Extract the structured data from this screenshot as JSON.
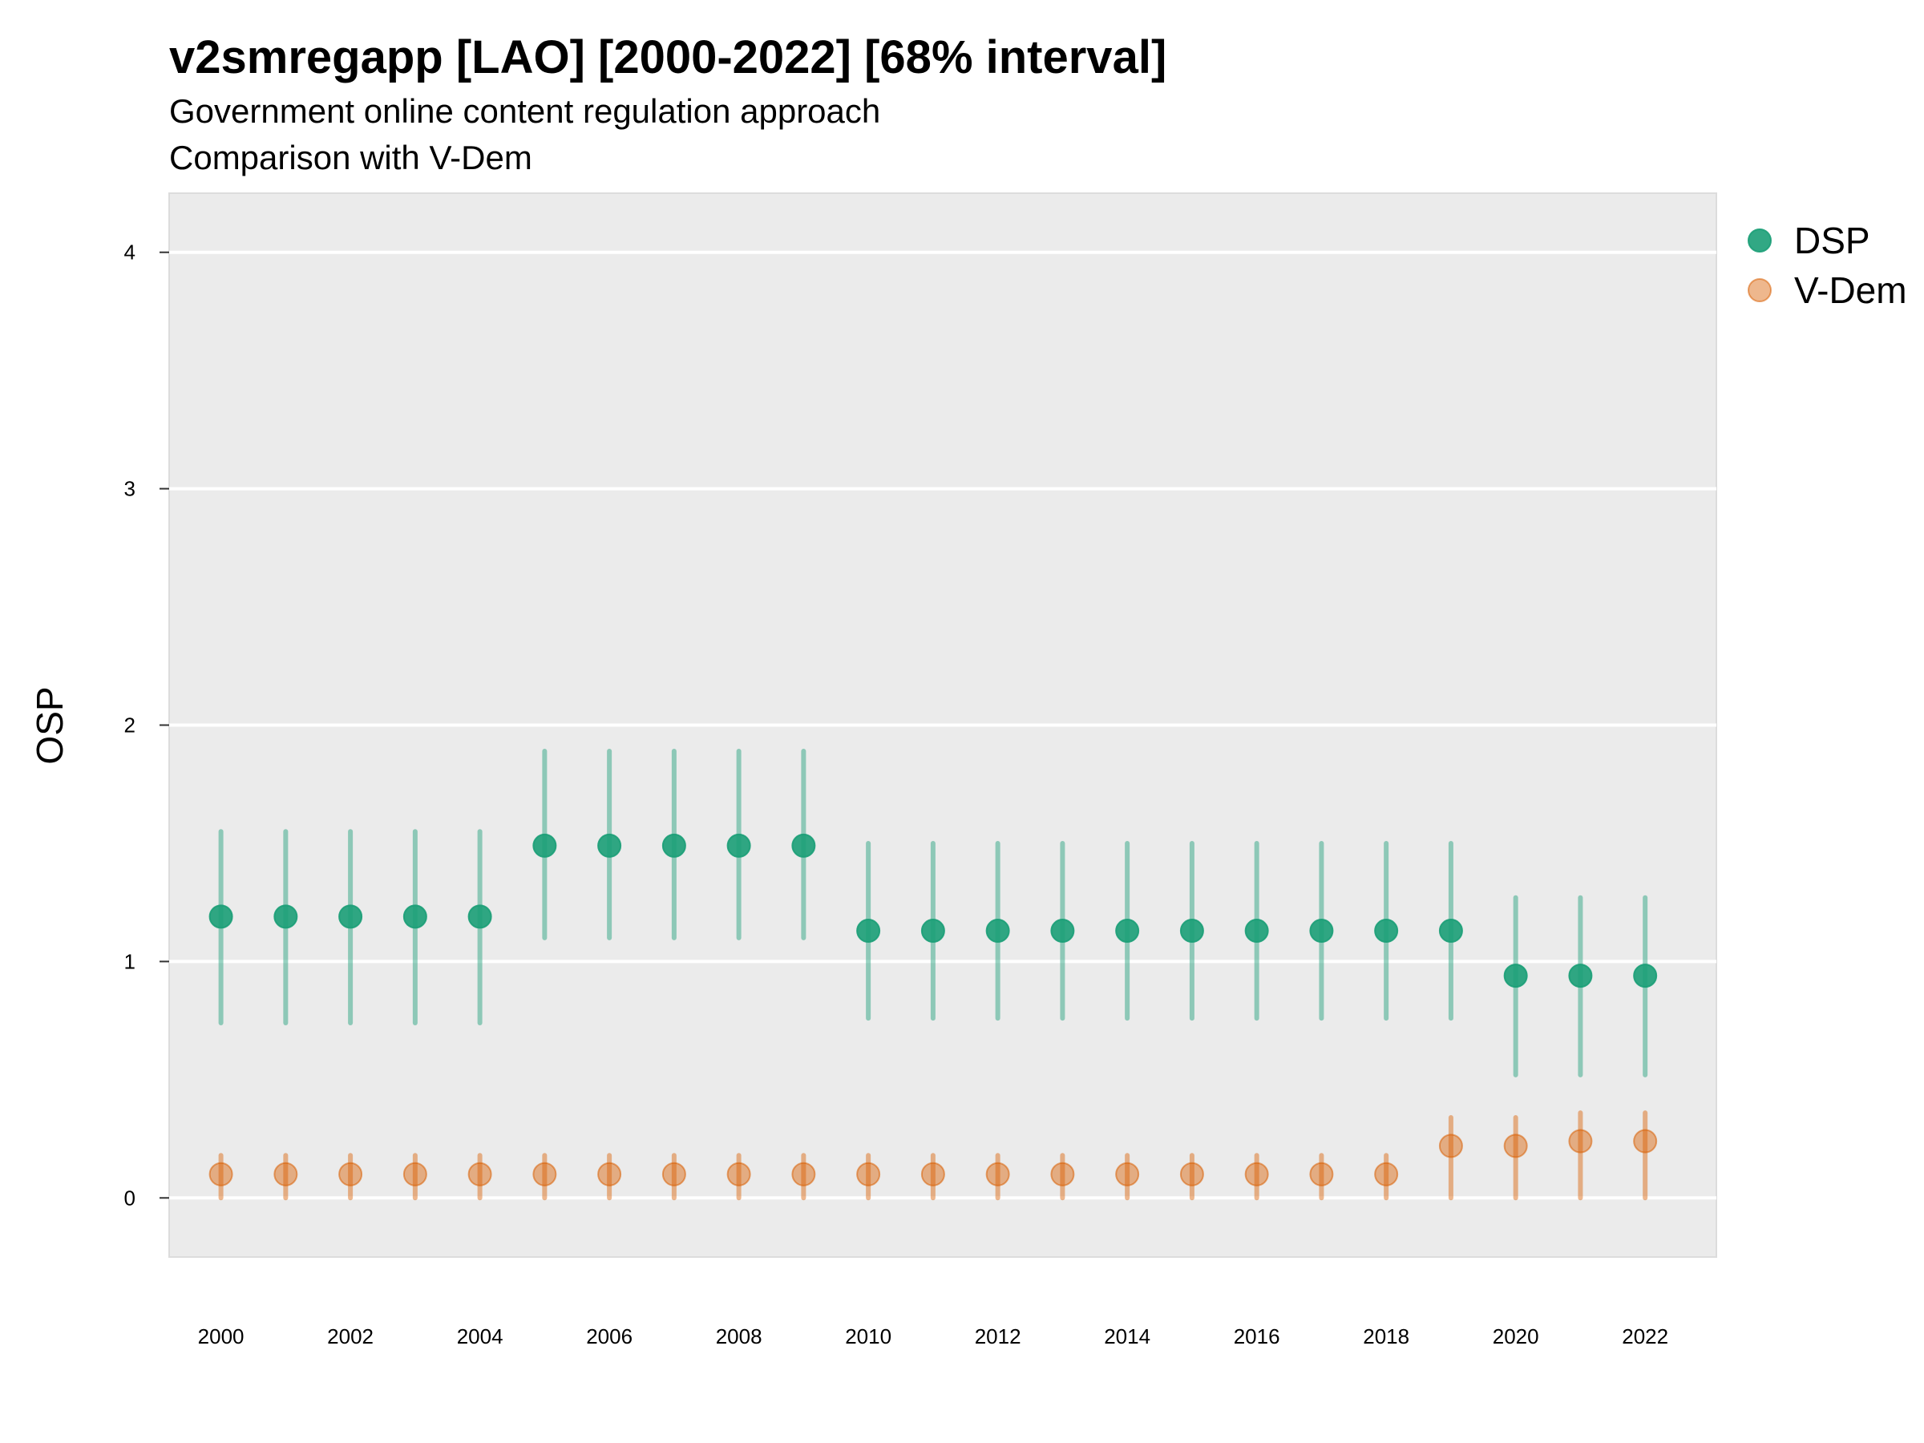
{
  "chart_data": {
    "type": "scatter",
    "title": "v2smregapp [LAO] [2000-2022] [68% interval]",
    "subtitle": "Government online content regulation approach",
    "subtitle2": "Comparison with V-Dem",
    "ylabel": "OSP",
    "xlabel": "",
    "x": [
      2000,
      2001,
      2002,
      2003,
      2004,
      2005,
      2006,
      2007,
      2008,
      2009,
      2010,
      2011,
      2012,
      2013,
      2014,
      2015,
      2016,
      2017,
      2018,
      2019,
      2020,
      2021,
      2022
    ],
    "x_ticks": [
      2000,
      2002,
      2004,
      2006,
      2008,
      2010,
      2012,
      2014,
      2016,
      2018,
      2020,
      2022
    ],
    "y_ticks": [
      0,
      1,
      2,
      3,
      4
    ],
    "xlim": [
      1999.2,
      2023.1
    ],
    "ylim": [
      -0.25,
      4.25
    ],
    "grid": true,
    "legend_position": "right",
    "series": [
      {
        "name": "DSP",
        "color": "#1b9e77",
        "values": [
          1.19,
          1.19,
          1.19,
          1.19,
          1.19,
          1.49,
          1.49,
          1.49,
          1.49,
          1.49,
          1.13,
          1.13,
          1.13,
          1.13,
          1.13,
          1.13,
          1.13,
          1.13,
          1.13,
          1.13,
          0.94,
          0.94,
          0.94
        ],
        "lower": [
          0.74,
          0.74,
          0.74,
          0.74,
          0.74,
          1.1,
          1.1,
          1.1,
          1.1,
          1.1,
          0.76,
          0.76,
          0.76,
          0.76,
          0.76,
          0.76,
          0.76,
          0.76,
          0.76,
          0.76,
          0.52,
          0.52,
          0.52
        ],
        "upper": [
          1.55,
          1.55,
          1.55,
          1.55,
          1.55,
          1.89,
          1.89,
          1.89,
          1.89,
          1.89,
          1.5,
          1.5,
          1.5,
          1.5,
          1.5,
          1.5,
          1.5,
          1.5,
          1.5,
          1.5,
          1.27,
          1.27,
          1.27
        ]
      },
      {
        "name": "V-Dem",
        "color": "#d95f02",
        "values": [
          0.1,
          0.1,
          0.1,
          0.1,
          0.1,
          0.1,
          0.1,
          0.1,
          0.1,
          0.1,
          0.1,
          0.1,
          0.1,
          0.1,
          0.1,
          0.1,
          0.1,
          0.1,
          0.1,
          0.22,
          0.22,
          0.24,
          0.24
        ],
        "lower": [
          0.0,
          0.0,
          0.0,
          0.0,
          0.0,
          0.0,
          0.0,
          0.0,
          0.0,
          0.0,
          0.0,
          0.0,
          0.0,
          0.0,
          0.0,
          0.0,
          0.0,
          0.0,
          0.0,
          0.0,
          0.0,
          0.0,
          0.0
        ],
        "upper": [
          0.18,
          0.18,
          0.18,
          0.18,
          0.18,
          0.18,
          0.18,
          0.18,
          0.18,
          0.18,
          0.18,
          0.18,
          0.18,
          0.18,
          0.18,
          0.18,
          0.18,
          0.18,
          0.18,
          0.34,
          0.34,
          0.36,
          0.36
        ]
      }
    ]
  }
}
